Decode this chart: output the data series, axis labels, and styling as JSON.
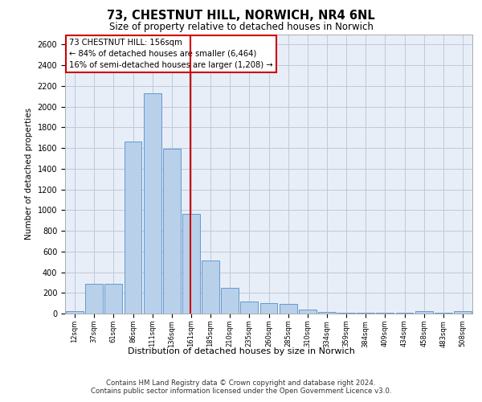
{
  "title_line1": "73, CHESTNUT HILL, NORWICH, NR4 6NL",
  "title_line2": "Size of property relative to detached houses in Norwich",
  "xlabel": "Distribution of detached houses by size in Norwich",
  "ylabel": "Number of detached properties",
  "annotation_line1": "73 CHESTNUT HILL: 156sqm",
  "annotation_line2": "← 84% of detached houses are smaller (6,464)",
  "annotation_line3": "16% of semi-detached houses are larger (1,208) →",
  "marker_value": 161,
  "bar_color": "#b8d0ea",
  "bar_edge_color": "#6699cc",
  "marker_color": "#cc0000",
  "background_color": "#e8eef8",
  "annotation_box_color": "#ffffff",
  "annotation_border_color": "#cc0000",
  "footer_line1": "Contains HM Land Registry data © Crown copyright and database right 2024.",
  "footer_line2": "Contains public sector information licensed under the Open Government Licence v3.0.",
  "bin_labels": [
    "12sqm",
    "37sqm",
    "61sqm",
    "86sqm",
    "111sqm",
    "136sqm",
    "161sqm",
    "185sqm",
    "210sqm",
    "235sqm",
    "260sqm",
    "285sqm",
    "310sqm",
    "334sqm",
    "359sqm",
    "384sqm",
    "409sqm",
    "434sqm",
    "458sqm",
    "483sqm",
    "508sqm"
  ],
  "counts": [
    20,
    290,
    290,
    1660,
    2130,
    1590,
    960,
    510,
    245,
    120,
    100,
    95,
    40,
    15,
    10,
    10,
    5,
    5,
    20,
    5,
    20
  ],
  "ylim": [
    0,
    2700
  ],
  "yticks": [
    0,
    200,
    400,
    600,
    800,
    1000,
    1200,
    1400,
    1600,
    1800,
    2000,
    2200,
    2400,
    2600
  ]
}
